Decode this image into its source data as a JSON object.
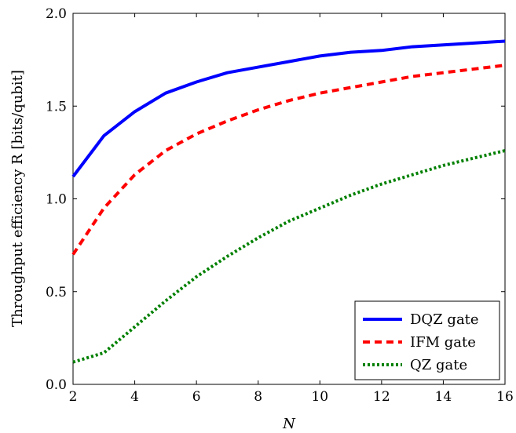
{
  "chart_data": {
    "type": "line",
    "xlabel": "N",
    "ylabel": "Throughput efficiency R [bits/qubit]",
    "xlim": [
      2,
      16
    ],
    "ylim": [
      0,
      2
    ],
    "xticks": [
      2,
      4,
      6,
      8,
      10,
      12,
      14,
      16
    ],
    "yticks": [
      0,
      0.5,
      1,
      1.5,
      2
    ],
    "ytick_labels": [
      "0.0",
      "0.5",
      "1.0",
      "1.5",
      "2.0"
    ],
    "legend_position": "bottom-right",
    "grid": false,
    "x": [
      2,
      3,
      4,
      5,
      6,
      7,
      8,
      9,
      10,
      11,
      12,
      13,
      14,
      15,
      16
    ],
    "series": [
      {
        "name": "DQZ gate",
        "color": "#0000ff",
        "style": "solid",
        "values": [
          1.12,
          1.34,
          1.47,
          1.57,
          1.63,
          1.68,
          1.71,
          1.74,
          1.77,
          1.79,
          1.8,
          1.82,
          1.83,
          1.84,
          1.85
        ]
      },
      {
        "name": "IFM gate",
        "color": "#ff0000",
        "style": "dashed",
        "values": [
          0.7,
          0.95,
          1.13,
          1.26,
          1.35,
          1.42,
          1.48,
          1.53,
          1.57,
          1.6,
          1.63,
          1.66,
          1.68,
          1.7,
          1.72
        ]
      },
      {
        "name": "QZ gate",
        "color": "#008000",
        "style": "dotted",
        "values": [
          0.12,
          0.17,
          0.31,
          0.45,
          0.58,
          0.69,
          0.79,
          0.88,
          0.95,
          1.02,
          1.08,
          1.13,
          1.18,
          1.22,
          1.26
        ]
      }
    ]
  }
}
